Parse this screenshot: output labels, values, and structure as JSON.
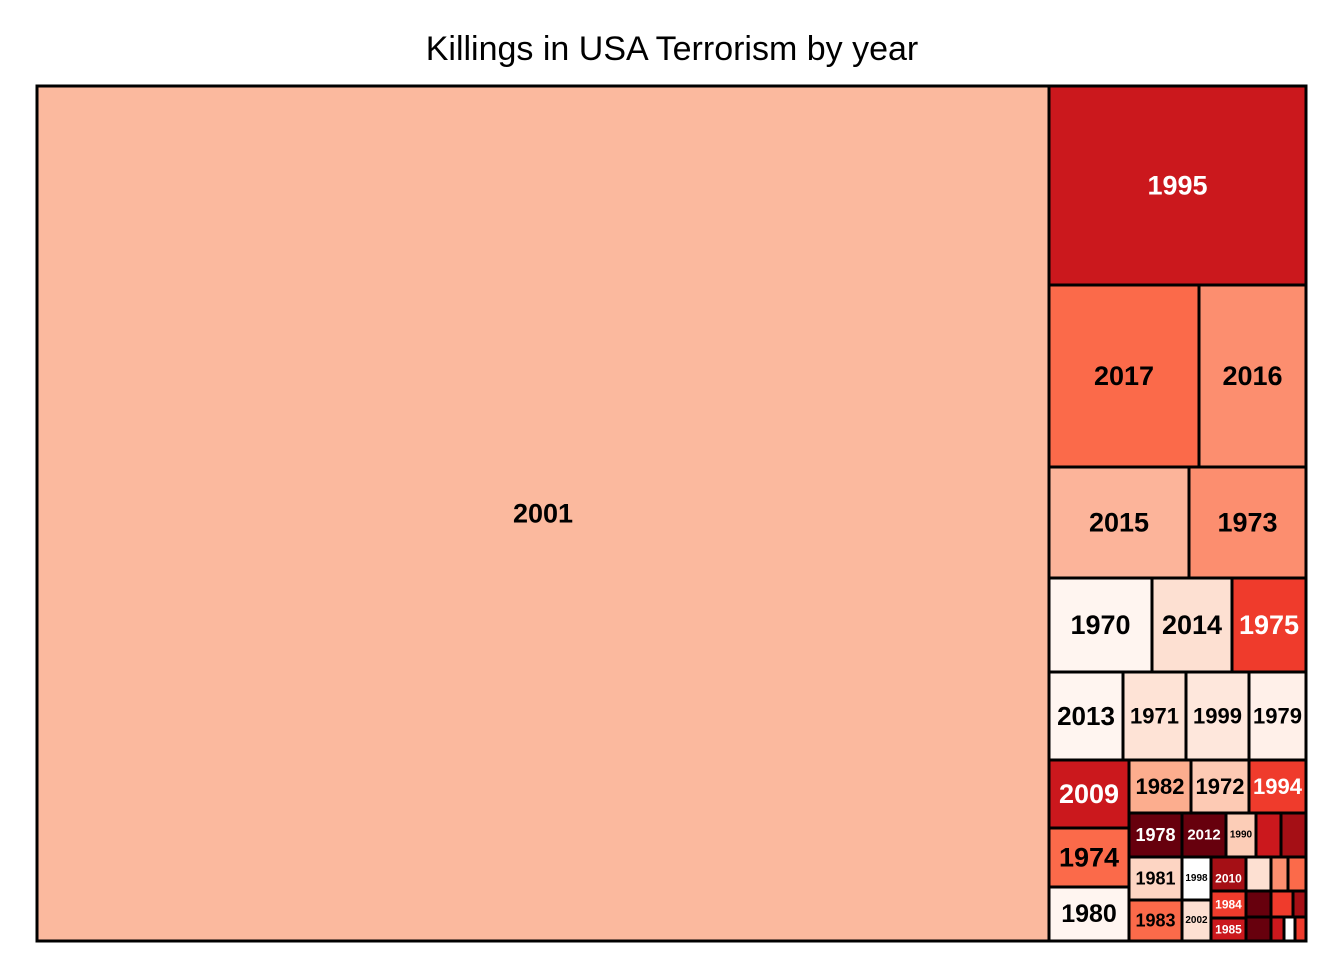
{
  "chart_data": {
    "type": "treemap",
    "title": "Killings in USA Terrorism by year",
    "tiles": [
      {
        "label": "2001",
        "color": "#FBB99E",
        "text_color": "#000000"
      },
      {
        "label": "1995",
        "color": "#CB181D",
        "text_color": "#FFFFFF"
      },
      {
        "label": "2017",
        "color": "#FB6A4A",
        "text_color": "#000000"
      },
      {
        "label": "2016",
        "color": "#FC8E6F",
        "text_color": "#000000"
      },
      {
        "label": "2015",
        "color": "#FCB49A",
        "text_color": "#000000"
      },
      {
        "label": "1973",
        "color": "#FC8E6F",
        "text_color": "#000000"
      },
      {
        "label": "1970",
        "color": "#FFF5F0",
        "text_color": "#000000"
      },
      {
        "label": "2014",
        "color": "#FDE0D2",
        "text_color": "#000000"
      },
      {
        "label": "1975",
        "color": "#EF3B2C",
        "text_color": "#FFFFFF"
      },
      {
        "label": "2013",
        "color": "#FFF5F0",
        "text_color": "#000000"
      },
      {
        "label": "1971",
        "color": "#FEE3D6",
        "text_color": "#000000"
      },
      {
        "label": "1999",
        "color": "#FEE7DC",
        "text_color": "#000000"
      },
      {
        "label": "1979",
        "color": "#FFF0E9",
        "text_color": "#000000"
      },
      {
        "label": "2009",
        "color": "#CB181D",
        "text_color": "#FFFFFF"
      },
      {
        "label": "1982",
        "color": "#FCAD8E",
        "text_color": "#000000"
      },
      {
        "label": "1972",
        "color": "#FDCAB4",
        "text_color": "#000000"
      },
      {
        "label": "1994",
        "color": "#EF3B2C",
        "text_color": "#FFFFFF"
      },
      {
        "label": "1974",
        "color": "#FB6A4A",
        "text_color": "#000000"
      },
      {
        "label": "1978",
        "color": "#67000D",
        "text_color": "#FFFFFF"
      },
      {
        "label": "2012",
        "color": "#67000D",
        "text_color": "#FFFFFF"
      },
      {
        "label": "1990",
        "color": "#FCCDB7",
        "text_color": "#000000"
      },
      {
        "label": "",
        "color": "#CB181D",
        "text_color": "#FFFFFF"
      },
      {
        "label": "",
        "color": "#A50F15",
        "text_color": "#FFFFFF"
      },
      {
        "label": "1981",
        "color": "#FDD5C3",
        "text_color": "#000000"
      },
      {
        "label": "1998",
        "color": "#FFFFFF",
        "text_color": "#000000"
      },
      {
        "label": "2010",
        "color": "#A50F15",
        "text_color": "#FFFFFF"
      },
      {
        "label": "",
        "color": "#FDE0D2",
        "text_color": "#000000"
      },
      {
        "label": "",
        "color": "#FC8E6F",
        "text_color": "#000000"
      },
      {
        "label": "",
        "color": "#FB6A4A",
        "text_color": "#000000"
      },
      {
        "label": "1980",
        "color": "#FFF5F0",
        "text_color": "#000000"
      },
      {
        "label": "1983",
        "color": "#FB6A4A",
        "text_color": "#000000"
      },
      {
        "label": "2002",
        "color": "#FDE0D2",
        "text_color": "#000000"
      },
      {
        "label": "1984",
        "color": "#EF3B2C",
        "text_color": "#FFFFFF"
      },
      {
        "label": "1985",
        "color": "#CB181D",
        "text_color": "#FFFFFF"
      },
      {
        "label": "",
        "color": "#67000D",
        "text_color": "#FFFFFF"
      },
      {
        "label": "",
        "color": "#EF3B2C",
        "text_color": "#FFFFFF"
      },
      {
        "label": "",
        "color": "#A50F15",
        "text_color": "#FFFFFF"
      },
      {
        "label": "",
        "color": "#67000D",
        "text_color": "#FFFFFF"
      },
      {
        "label": "",
        "color": "#CB181D",
        "text_color": "#FFFFFF"
      },
      {
        "label": "",
        "color": "#FFFFFF",
        "text_color": "#000000"
      },
      {
        "label": "",
        "color": "#EF3B2C",
        "text_color": "#FFFFFF"
      }
    ]
  }
}
